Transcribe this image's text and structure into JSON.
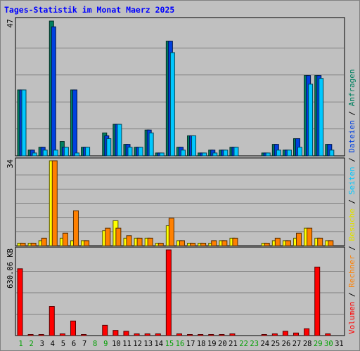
{
  "chart_data": {
    "type": "bar",
    "title": "Tages-Statistik im Monat Maerz 2025",
    "days": [
      "1",
      "2",
      "3",
      "4",
      "5",
      "6",
      "7",
      "8",
      "9",
      "10",
      "11",
      "12",
      "13",
      "14",
      "15",
      "16",
      "17",
      "18",
      "19",
      "20",
      "21",
      "22",
      "23",
      "24",
      "25",
      "26",
      "27",
      "28",
      "29",
      "30",
      "31"
    ],
    "weekend_days": [
      "1",
      "2",
      "8",
      "9",
      "15",
      "16",
      "22",
      "23",
      "29",
      "30"
    ],
    "legend": {
      "volumen": "Volumen",
      "rechner": "Rechner",
      "besuche": "Besuche",
      "seiten": "Seiten",
      "dateien": "Dateien",
      "anfragen": "Anfragen",
      "separator": " / "
    },
    "panels": [
      {
        "id": "requests",
        "ymax_label": "47",
        "ymax": 47,
        "series": [
          {
            "key": "anfragen",
            "color": "#008060",
            "values": [
              23,
              2,
              3,
              47,
              5,
              23,
              3,
              0,
              8,
              11,
              4,
              3,
              9,
              1,
              40,
              3,
              7,
              1,
              2,
              2,
              3,
              0,
              0,
              1,
              4,
              2,
              6,
              28,
              28,
              4,
              0
            ]
          },
          {
            "key": "dateien",
            "color": "#0040e0",
            "values": [
              23,
              2,
              3,
              45,
              3,
              23,
              3,
              0,
              7,
              11,
              4,
              3,
              9,
              1,
              40,
              3,
              7,
              1,
              2,
              2,
              3,
              0,
              0,
              1,
              4,
              2,
              6,
              28,
              28,
              4,
              0
            ]
          },
          {
            "key": "seiten",
            "color": "#00c8ff",
            "values": [
              23,
              1,
              2,
              2,
              3,
              1,
              3,
              0,
              6,
              11,
              3,
              3,
              8,
              1,
              36,
              2,
              7,
              1,
              1,
              2,
              3,
              0,
              0,
              1,
              2,
              2,
              3,
              25,
              27,
              2,
              0
            ]
          }
        ]
      },
      {
        "id": "visits",
        "ymax_label": "34",
        "ymax": 34,
        "series": [
          {
            "key": "besuche",
            "color": "#ffff00",
            "values": [
              1,
              1,
              2,
              34,
              3,
              2,
              2,
              0,
              6,
              10,
              3,
              3,
              3,
              1,
              8,
              2,
              1,
              1,
              1,
              2,
              3,
              0,
              0,
              1,
              2,
              2,
              3,
              7,
              3,
              2,
              0
            ]
          },
          {
            "key": "rechner",
            "color": "#ff8000",
            "values": [
              1,
              1,
              3,
              34,
              5,
              14,
              2,
              0,
              7,
              7,
              4,
              3,
              3,
              1,
              11,
              2,
              1,
              1,
              2,
              2,
              3,
              0,
              0,
              1,
              3,
              2,
              5,
              7,
              3,
              2,
              0
            ]
          }
        ]
      },
      {
        "id": "volume",
        "ymax_label": "630.06 KB",
        "ymax": 100,
        "series": [
          {
            "key": "volumen",
            "color": "#ff0000",
            "values": [
              78,
              1,
              1,
              34,
              2,
              17,
              1,
              0,
              12,
              6,
              5,
              2,
              2,
              2,
              100,
              2,
              1,
              1,
              1,
              1,
              2,
              0,
              0,
              1,
              2,
              5,
              3,
              8,
              80,
              2,
              0
            ]
          }
        ]
      }
    ]
  }
}
